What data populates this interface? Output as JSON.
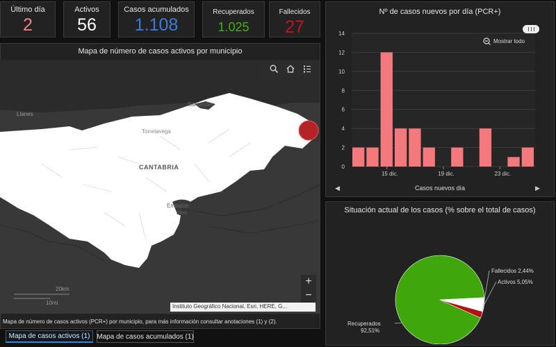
{
  "stats": {
    "ultimo_dia": {
      "label": "Último día",
      "value": "2",
      "color": "#f28080"
    },
    "activos": {
      "label": "Activos",
      "value": "56",
      "color": "#ffffff"
    },
    "acumulados": {
      "label": "Casos acumulados",
      "value": "1.108",
      "color": "#3a7bdc"
    },
    "recuperados": {
      "label": "Recuperados",
      "value": "1.025",
      "color": "#45b012"
    },
    "fallecidos": {
      "label": "Fallecidos",
      "value": "27",
      "color": "#c0161c"
    }
  },
  "map": {
    "title": "Mapa de número de casos activos por municipio",
    "labels": {
      "llanes": "Llanes",
      "santander": "Santander",
      "torrelavega": "Torrelavega",
      "cantabria": "CANTABRIA",
      "embalse": "Embalse",
      "ebro": "Ebro"
    },
    "scale_km": "20km",
    "scale_mi": "10mi",
    "attribution": "Instituto Geográfico Nacional, Esri, HERE, G...",
    "footer": "Mapa de número de casos activos (PCR+) por municipio, para más información consultar anotaciones (1) y (2).",
    "zoom_in": "+",
    "zoom_out": "−"
  },
  "tabs": [
    {
      "label": "Mapa de casos activos (1)",
      "active": true
    },
    {
      "label": "Mapa de casos acumulados (1)",
      "active": false
    }
  ],
  "bar_panel": {
    "title": "Nº de casos nuevos por día (PCR+)",
    "show_all": "Mostrar todo",
    "footer": "Casos nuevos día",
    "prev": "◀",
    "next": "▶"
  },
  "pie_panel": {
    "title": "Situación actual de los casos (% sobre el total de casos)",
    "labels": {
      "fallecidos": "Fallecidos 2,44%",
      "activos": "Activos 5,05%",
      "recuperados_1": "Recuperados",
      "recuperados_2": "92,51%"
    }
  },
  "chart_data": [
    {
      "type": "bar",
      "title": "Nº de casos nuevos por día (PCR+)",
      "xlabel": "Casos nuevos día",
      "ylabel": "",
      "ylim": [
        0,
        14
      ],
      "yticks": [
        0,
        2,
        4,
        6,
        8,
        10,
        12,
        14
      ],
      "xtick_labels": [
        "15 dic.",
        "19 dic.",
        "23 dic."
      ],
      "values": [
        2,
        2,
        12,
        4,
        4,
        2,
        0,
        2,
        0,
        4,
        0,
        1,
        2
      ],
      "color": "#f4797d",
      "grid": true
    },
    {
      "type": "pie",
      "title": "Situación actual de los casos (% sobre el total de casos)",
      "slices": [
        {
          "label": "Recuperados",
          "value": 92.51,
          "color": "#3fa60c"
        },
        {
          "label": "Fallecidos",
          "value": 2.44,
          "color": "#b51012"
        },
        {
          "label": "Activos",
          "value": 5.05,
          "color": "#ffffff"
        }
      ]
    }
  ]
}
